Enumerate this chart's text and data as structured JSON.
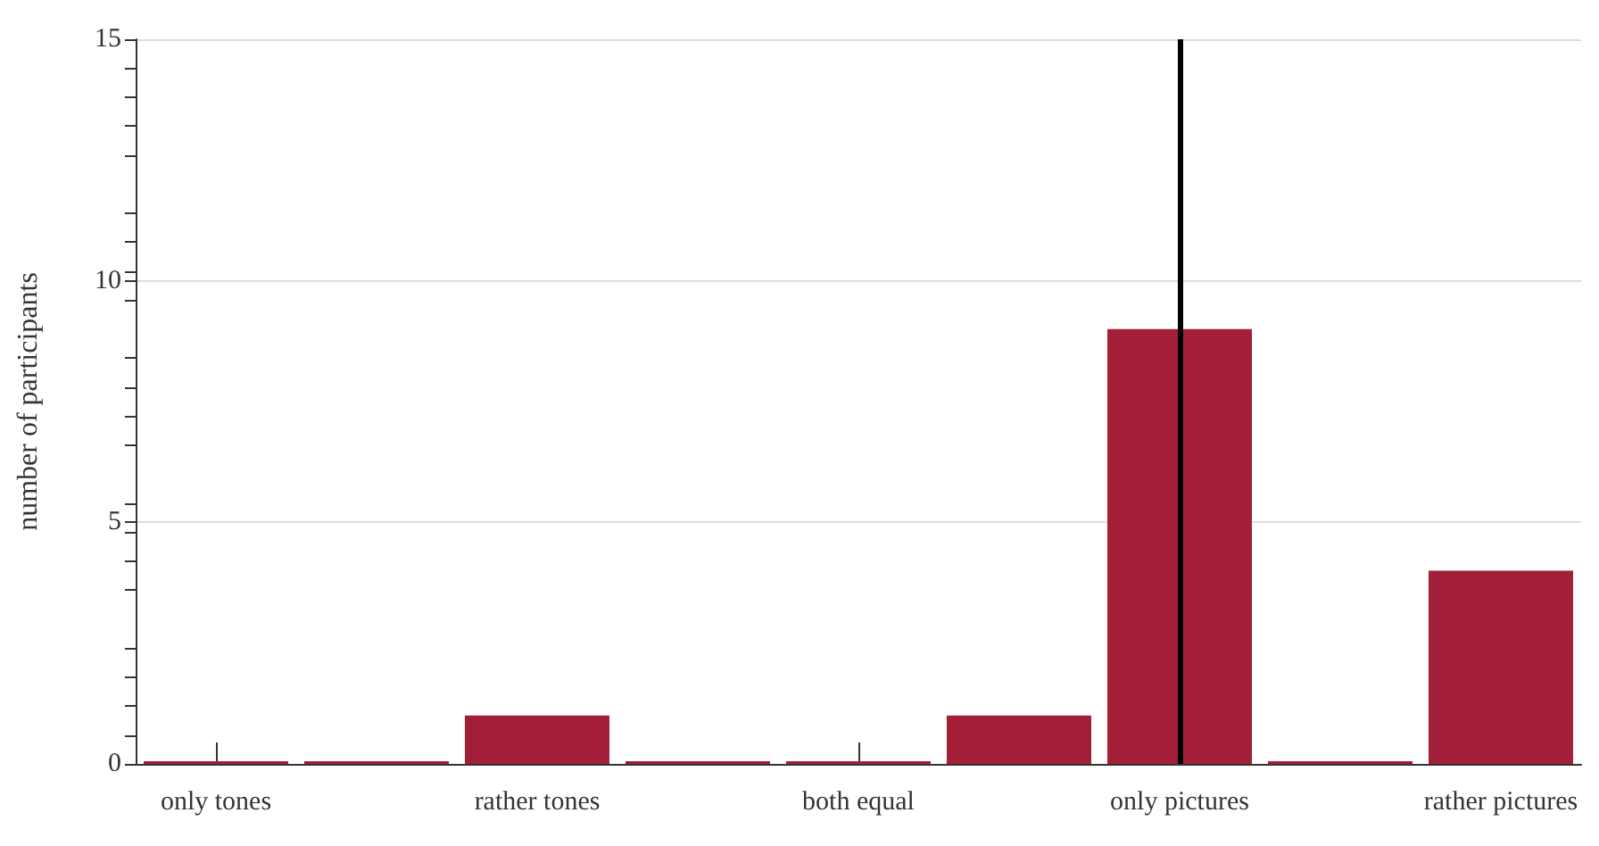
{
  "chart_data": {
    "type": "bar",
    "ylabel": "number of participants",
    "categories": [
      "only tones",
      null,
      "rather tones",
      null,
      "both equal",
      null,
      "only pictures",
      null,
      "rather pictures"
    ],
    "values": [
      0,
      0,
      1,
      0,
      0,
      1,
      9,
      0,
      4
    ],
    "color": "#a31f37",
    "ylim": [
      0,
      15
    ],
    "yticks": [
      0,
      5,
      10,
      15
    ],
    "grid": "y",
    "ref_lines": [
      {
        "axis": "x",
        "value": "only pictures",
        "color": "#000000"
      }
    ]
  }
}
